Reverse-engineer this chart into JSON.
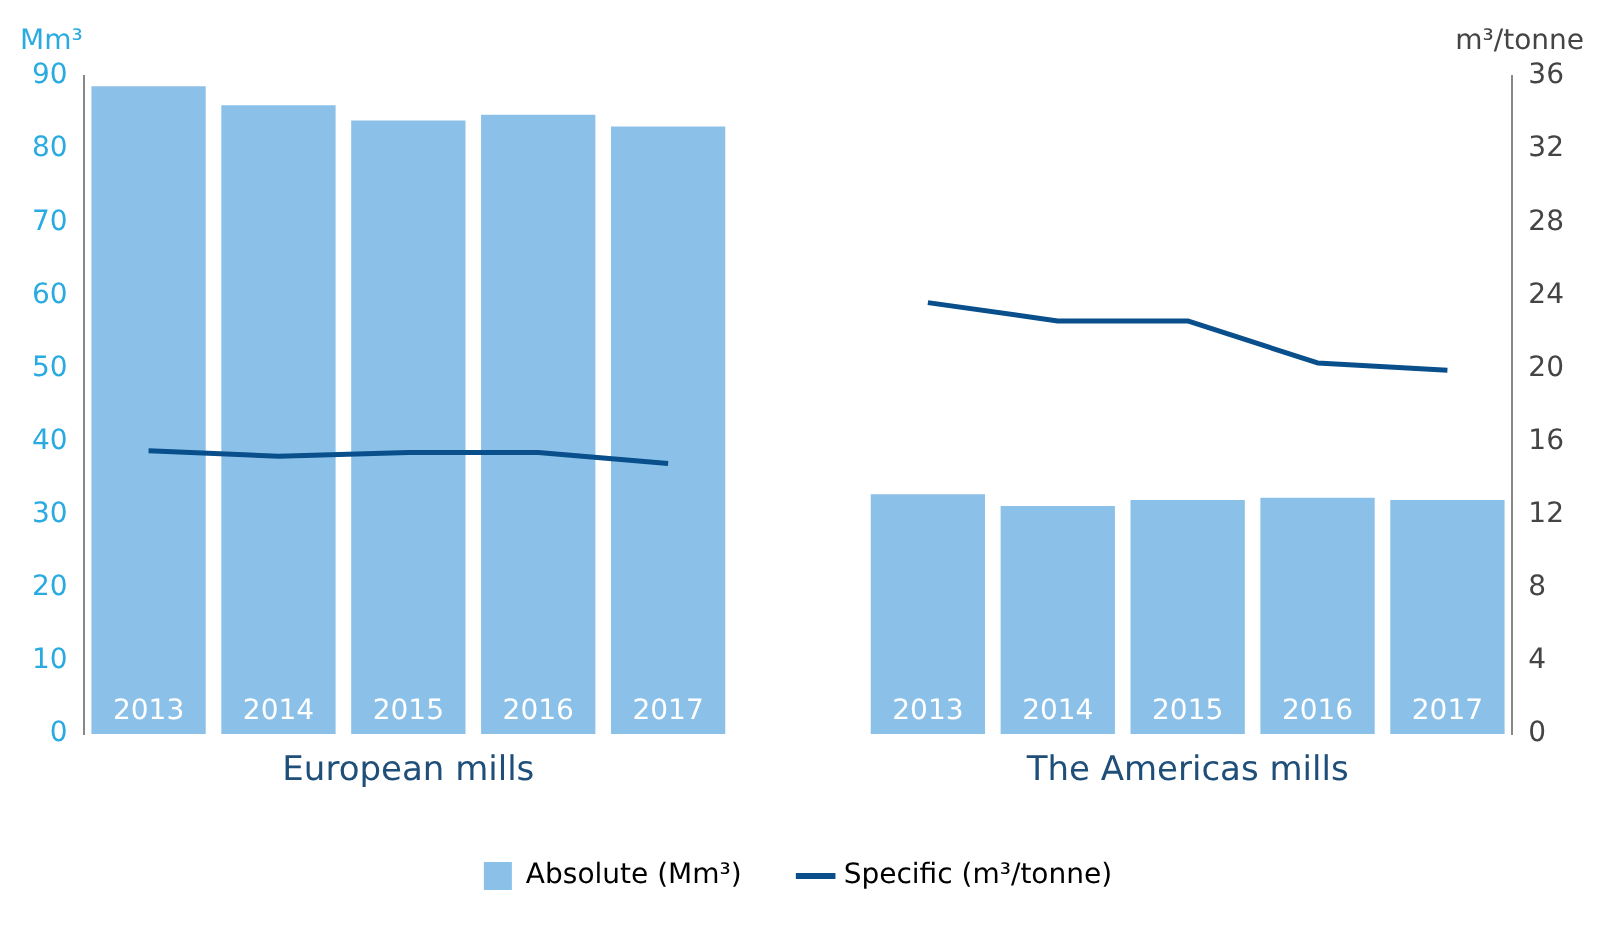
{
  "chart_data": {
    "type": "bar",
    "categories": [
      "2013",
      "2014",
      "2015",
      "2016",
      "2017",
      null,
      "2013",
      "2014",
      "2015",
      "2016",
      "2017"
    ],
    "series": [
      {
        "name": "Absolute (Mm³)",
        "color": "#8bc1e8",
        "values": [
          88.6,
          86.0,
          83.9,
          84.7,
          83.1,
          null,
          32.8,
          31.2,
          32.0,
          32.3,
          32.0
        ]
      },
      {
        "name": "Specific (m³/tonne)",
        "type": "line",
        "axis": "y2",
        "color": "#084f8c",
        "values": [
          15.5,
          15.2,
          15.4,
          15.4,
          14.8,
          null,
          23.6,
          22.6,
          22.6,
          20.3,
          19.9
        ]
      }
    ],
    "ylabel": "Mm³",
    "y2label": "m³/tonne",
    "ylim": [
      0,
      90
    ],
    "yticks": [
      0,
      10,
      20,
      30,
      40,
      50,
      60,
      70,
      80,
      90
    ],
    "y2lim": [
      0,
      36
    ],
    "y2ticks": [
      0,
      4,
      8,
      12,
      16,
      20,
      24,
      28,
      32,
      36
    ],
    "annotations": [
      "European mills",
      "The Americas mills"
    ],
    "grid": false,
    "legend": "bottom",
    "marker": "none",
    "line_style": "solid"
  }
}
